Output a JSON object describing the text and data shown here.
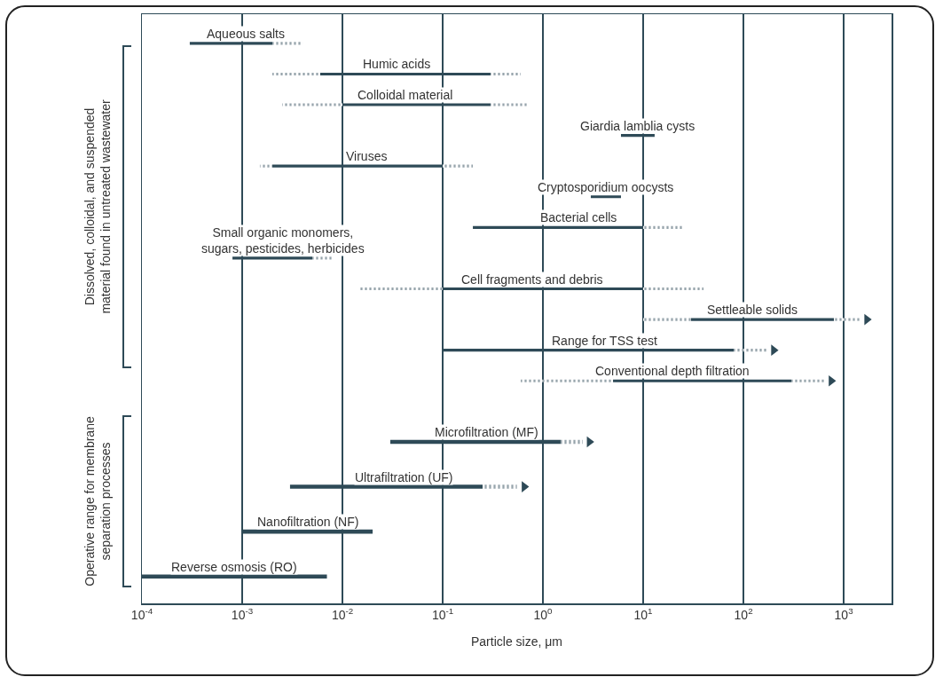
{
  "chart_data": [
    {
      "type": "bar",
      "orientation": "horizontal",
      "log": "x",
      "grid": "x",
      "tick_labels": false,
      "ylabel": "Dissolved, colloidal, and suspended material found in untreated wastewater",
      "categories": [
        "Aqueous salts",
        "Humic acids",
        "Colloidal material",
        "Giardia lamblia cysts",
        "Viruses",
        "Cryptosporidium oocysts",
        "Bacterial cells",
        "Small organic monomers, sugars, pesticides, herbicides",
        "Cell fragments and debris",
        "Settleable solids",
        "Range for TSS test",
        "Conventional depth filtration"
      ],
      "series": [
        {
          "color": "#2e4a57",
          "line_style": "dotted",
          "base": [
            null,
            0.002,
            0.0025,
            null,
            0.0015,
            null,
            null,
            null,
            0.015,
            10,
            null,
            0.6
          ],
          "values": [
            null,
            0.004,
            0.0075,
            null,
            0.0005,
            null,
            null,
            null,
            0.085,
            20,
            null,
            4.4
          ]
        },
        {
          "color": "#2e4a57",
          "line_style": "solid",
          "base": [
            0.0003,
            0.006,
            0.01,
            6,
            0.002,
            3,
            0.2,
            0.0008,
            0.1,
            30,
            0.1,
            5
          ],
          "values": [
            0.0017,
            0.294,
            0.29,
            7,
            0.098,
            3,
            9.8,
            0.0042,
            9.9,
            770,
            79.9,
            295
          ]
        },
        {
          "color": "#2e4a57",
          "line_style": "dotted",
          "base": [
            0.002,
            0.3,
            0.3,
            null,
            0.1,
            null,
            10,
            0.005,
            10,
            800,
            80,
            300
          ],
          "values": [
            0.002,
            0.3,
            0.4,
            null,
            0.1,
            null,
            15,
            0.003,
            30,
            700,
            90,
            350
          ]
        },
        {
          "type": "scatter",
          "marker": "triangle",
          "color": "#2e4a57",
          "values": [
            null,
            null,
            null,
            null,
            null,
            null,
            null,
            null,
            null,
            1700,
            200,
            750
          ]
        }
      ],
      "xlim": [
        0.0001,
        3000
      ],
      "xticks": [
        {
          "value": 0.0001,
          "label": null
        },
        {
          "value": 0.001,
          "label": null
        },
        {
          "value": 0.01,
          "label": null
        },
        {
          "value": 0.1,
          "label": null
        },
        {
          "value": 1,
          "label": null
        },
        {
          "value": 10,
          "label": null
        },
        {
          "value": 100,
          "label": null
        },
        {
          "value": 1000,
          "label": null
        }
      ]
    },
    {
      "type": "bar",
      "orientation": "horizontal",
      "log": "x",
      "grid": "x",
      "tick_labels": "x",
      "ylabel": "Operative range for membrane separation processes",
      "xlabel": "Particle size, μm",
      "categories": [
        "Microfiltration (MF)",
        "Ultrafiltration (UF)",
        "Nanofiltration (NF)",
        "Reverse osmosis (RO)"
      ],
      "series": [
        {
          "color": "#2e4a57",
          "line_style": "solid",
          "base": [
            0.03,
            0.003,
            0.001,
            0.0001
          ],
          "values": [
            1.47,
            0.247,
            0.019,
            0.0069
          ]
        },
        {
          "color": "#2e4a57",
          "line_style": "dotted",
          "base": [
            1.5,
            0.25,
            null,
            null
          ],
          "values": [
            1.0,
            0.3,
            null,
            null
          ]
        },
        {
          "type": "scatter",
          "marker": "triangle",
          "color": "#2e4a57",
          "values": [
            2.9,
            0.65,
            null,
            null
          ]
        }
      ],
      "xlim": [
        0.0001,
        3000
      ],
      "xticks": [
        {
          "value": 0.0001,
          "label": "10$^{-4}$"
        },
        {
          "value": 0.001,
          "label": "10$^{-3}$"
        },
        {
          "value": 0.01,
          "label": "10$^{-2}$"
        },
        {
          "value": 0.1,
          "label": "10$^{-1}$"
        },
        {
          "value": 1,
          "label": "10$^{0}$"
        },
        {
          "value": 10,
          "label": "10$^{1}$"
        },
        {
          "value": 100,
          "label": "10$^{2}$"
        },
        {
          "value": 1000,
          "label": "10$^{3}$"
        }
      ]
    }
  ]
}
